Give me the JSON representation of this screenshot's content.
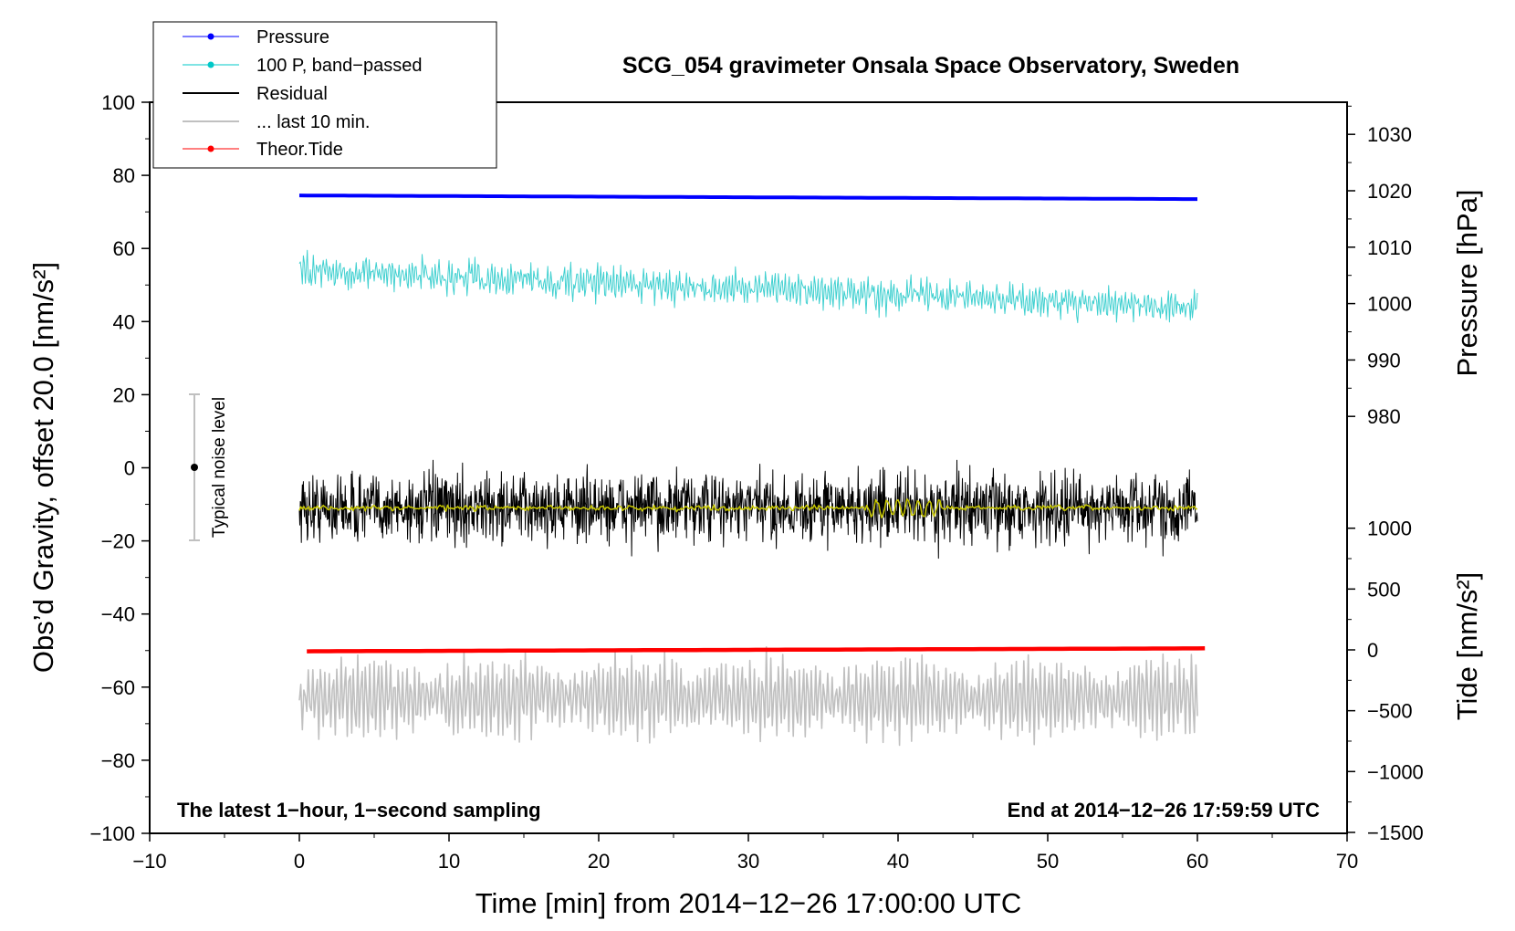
{
  "chart_data": {
    "type": "line",
    "title": "SCG_054 gravimeter Onsala Space Observatory, Sweden",
    "xlabel": "Time [min] from 2014−12−26 17:00:00 UTC",
    "ylabel_left": "Obs’d Gravity, offset 20.0 [nm/s²]",
    "ylabel_right_pressure": "Pressure [hPa]",
    "ylabel_right_tide": "Tide [nm/s²]",
    "xlim": [
      -10,
      70
    ],
    "ylim": [
      -100,
      100
    ],
    "xticks": [
      "−10",
      "0",
      "10",
      "20",
      "30",
      "40",
      "50",
      "60",
      "70"
    ],
    "xtick_values": [
      -10,
      0,
      10,
      20,
      30,
      40,
      50,
      60,
      70
    ],
    "yticks": [
      "−100",
      "−80",
      "−60",
      "−40",
      "−20",
      "0",
      "20",
      "40",
      "60",
      "80",
      "100"
    ],
    "ytick_values": [
      -100,
      -80,
      -60,
      -40,
      -20,
      0,
      20,
      40,
      60,
      80,
      100
    ],
    "pressure_axis": {
      "ticks": [
        "980",
        "990",
        "1000",
        "1010",
        "1020",
        "1030"
      ],
      "values": [
        980,
        990,
        1000,
        1010,
        1020,
        1030
      ]
    },
    "tide_axis": {
      "ticks": [
        "−1500",
        "−1000",
        "−500",
        "0",
        "500",
        "1000"
      ],
      "values": [
        -1500,
        -1000,
        -500,
        0,
        500,
        1000
      ]
    },
    "legend": [
      {
        "label": "Pressure",
        "color": "#0000ff",
        "marker": true
      },
      {
        "label": "100 P, band−passed",
        "color": "#00c8c8",
        "marker": true
      },
      {
        "label": "Residual",
        "color": "#000000",
        "marker": false
      },
      {
        "label": "... last 10 min.",
        "color": "#c0c0c0",
        "marker": false
      },
      {
        "label": "Theor.Tide",
        "color": "#ff0000",
        "marker": true
      }
    ],
    "series": [
      {
        "name": "Pressure",
        "color": "#0000ff",
        "x_range": [
          0,
          60
        ],
        "start": 74.5,
        "end": 73.5,
        "note": "plotted near 1018 hPa"
      },
      {
        "name": "100 P, band−passed",
        "color": "#40d0d0",
        "x_range": [
          0,
          60
        ],
        "start": 54,
        "end": 44,
        "amplitude": 5
      },
      {
        "name": "Residual",
        "color": "#000000",
        "x_range": [
          0,
          60
        ],
        "mean": -11,
        "amplitude": 12
      },
      {
        "name": "Residual smoothed",
        "color": "#c8c800",
        "x_range": [
          0,
          60
        ],
        "mean": -11,
        "amplitude": 1
      },
      {
        "name": "... last 10 min.",
        "color": "#c0c0c0",
        "x_range": [
          0,
          60
        ],
        "mean": -63,
        "amplitude": 10
      },
      {
        "name": "Theor.Tide",
        "color": "#ff0000",
        "x_range": [
          0.5,
          60.5
        ],
        "start": -50.2,
        "end": -49.4
      }
    ],
    "noise_bar": {
      "label": "Typical noise level",
      "x": -7,
      "center": 0,
      "low": -20,
      "high": 20
    },
    "annotations": [
      "The latest 1−hour, 1−second sampling",
      "End at 2014−12−26 17:59:59 UTC"
    ]
  }
}
